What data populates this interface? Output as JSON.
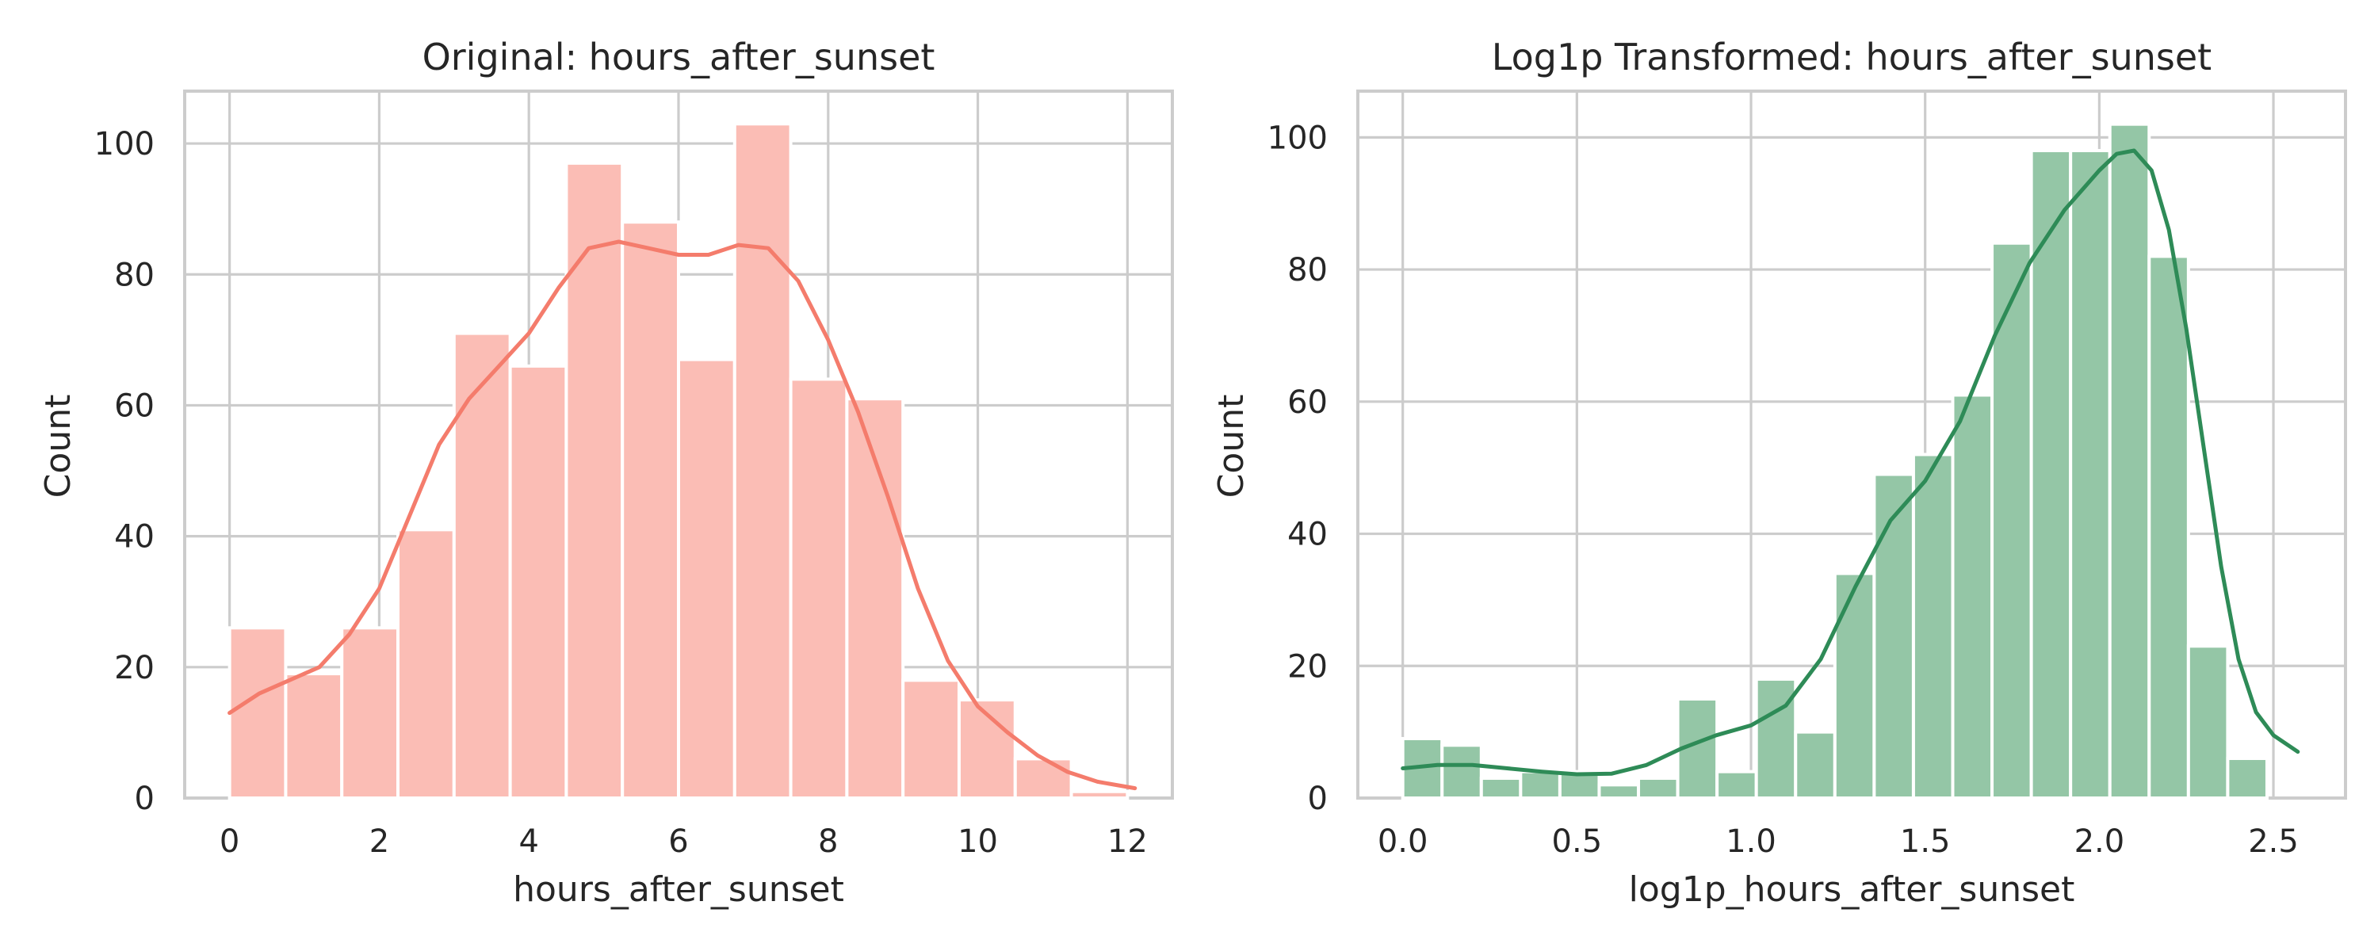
{
  "chart_data": [
    {
      "type": "bar",
      "title": "Original: hours_after_sunset",
      "xlabel": "hours_after_sunset",
      "ylabel": "Count",
      "xlim": [
        -0.6,
        12.6
      ],
      "ylim": [
        0,
        108
      ],
      "xticks": [
        0,
        2,
        4,
        6,
        8,
        10,
        12
      ],
      "xtick_labels": [
        "0",
        "2",
        "4",
        "6",
        "8",
        "10",
        "12"
      ],
      "yticks": [
        0,
        20,
        40,
        60,
        80,
        100
      ],
      "ytick_labels": [
        "0",
        "20",
        "40",
        "60",
        "80",
        "100"
      ],
      "grid": true,
      "bins": [
        {
          "x0": 0.0,
          "x1": 0.75,
          "count": 26
        },
        {
          "x0": 0.75,
          "x1": 1.5,
          "count": 19
        },
        {
          "x0": 1.5,
          "x1": 2.25,
          "count": 26
        },
        {
          "x0": 2.25,
          "x1": 3.0,
          "count": 41
        },
        {
          "x0": 3.0,
          "x1": 3.75,
          "count": 71
        },
        {
          "x0": 3.75,
          "x1": 4.5,
          "count": 66
        },
        {
          "x0": 4.5,
          "x1": 5.25,
          "count": 97
        },
        {
          "x0": 5.25,
          "x1": 6.0,
          "count": 88
        },
        {
          "x0": 6.0,
          "x1": 6.75,
          "count": 67
        },
        {
          "x0": 6.75,
          "x1": 7.5,
          "count": 103
        },
        {
          "x0": 7.5,
          "x1": 8.25,
          "count": 64
        },
        {
          "x0": 8.25,
          "x1": 9.0,
          "count": 61
        },
        {
          "x0": 9.0,
          "x1": 9.75,
          "count": 18
        },
        {
          "x0": 9.75,
          "x1": 10.5,
          "count": 15
        },
        {
          "x0": 10.5,
          "x1": 11.25,
          "count": 6
        },
        {
          "x0": 11.25,
          "x1": 12.0,
          "count": 1
        }
      ],
      "kde_curve": [
        [
          0.0,
          13
        ],
        [
          0.4,
          16
        ],
        [
          0.8,
          18
        ],
        [
          1.2,
          20
        ],
        [
          1.6,
          25
        ],
        [
          2.0,
          32
        ],
        [
          2.4,
          43
        ],
        [
          2.8,
          54
        ],
        [
          3.2,
          61
        ],
        [
          3.6,
          66
        ],
        [
          4.0,
          71
        ],
        [
          4.4,
          78
        ],
        [
          4.8,
          84
        ],
        [
          5.2,
          85
        ],
        [
          5.6,
          84
        ],
        [
          6.0,
          83
        ],
        [
          6.4,
          83
        ],
        [
          6.8,
          84.5
        ],
        [
          7.2,
          84
        ],
        [
          7.6,
          79
        ],
        [
          8.0,
          70
        ],
        [
          8.4,
          59
        ],
        [
          8.8,
          46
        ],
        [
          9.2,
          32
        ],
        [
          9.6,
          21
        ],
        [
          10.0,
          14
        ],
        [
          10.4,
          10
        ],
        [
          10.8,
          6.5
        ],
        [
          11.2,
          4
        ],
        [
          11.6,
          2.5
        ],
        [
          12.1,
          1.5
        ]
      ],
      "colors": {
        "bar": "#fbbdb5",
        "kde": "#f47c6c"
      }
    },
    {
      "type": "bar",
      "title": "Log1p Transformed: hours_after_sunset",
      "xlabel": "log1p_hours_after_sunset",
      "ylabel": "Count",
      "xlim": [
        -0.129,
        2.707
      ],
      "ylim": [
        0,
        107
      ],
      "xticks": [
        0.0,
        0.5,
        1.0,
        1.5,
        2.0,
        2.5
      ],
      "xtick_labels": [
        "0.0",
        "0.5",
        "1.0",
        "1.5",
        "2.0",
        "2.5"
      ],
      "yticks": [
        0,
        20,
        40,
        60,
        80,
        100
      ],
      "ytick_labels": [
        "0",
        "20",
        "40",
        "60",
        "80",
        "100"
      ],
      "grid": true,
      "bins": [
        {
          "x0": 0.0,
          "x1": 0.1128,
          "count": 9
        },
        {
          "x0": 0.1128,
          "x1": 0.2256,
          "count": 8
        },
        {
          "x0": 0.2256,
          "x1": 0.3384,
          "count": 3
        },
        {
          "x0": 0.3384,
          "x1": 0.4512,
          "count": 4
        },
        {
          "x0": 0.4512,
          "x1": 0.564,
          "count": 4
        },
        {
          "x0": 0.564,
          "x1": 0.6768,
          "count": 2
        },
        {
          "x0": 0.6768,
          "x1": 0.7896,
          "count": 3
        },
        {
          "x0": 0.7896,
          "x1": 0.9024,
          "count": 15
        },
        {
          "x0": 0.9024,
          "x1": 1.0152,
          "count": 4
        },
        {
          "x0": 1.0152,
          "x1": 1.128,
          "count": 18
        },
        {
          "x0": 1.128,
          "x1": 1.2408,
          "count": 10
        },
        {
          "x0": 1.2408,
          "x1": 1.3536,
          "count": 34
        },
        {
          "x0": 1.3536,
          "x1": 1.4664,
          "count": 49
        },
        {
          "x0": 1.4664,
          "x1": 1.5792,
          "count": 52
        },
        {
          "x0": 1.5792,
          "x1": 1.692,
          "count": 61
        },
        {
          "x0": 1.692,
          "x1": 1.8048,
          "count": 84
        },
        {
          "x0": 1.8048,
          "x1": 1.9176,
          "count": 98
        },
        {
          "x0": 1.9176,
          "x1": 2.0304,
          "count": 98
        },
        {
          "x0": 2.0304,
          "x1": 2.1432,
          "count": 102
        },
        {
          "x0": 2.1432,
          "x1": 2.256,
          "count": 82
        },
        {
          "x0": 2.256,
          "x1": 2.3688,
          "count": 23
        },
        {
          "x0": 2.3688,
          "x1": 2.4816,
          "count": 6
        }
      ],
      "kde_curve": [
        [
          0.0,
          4.5
        ],
        [
          0.1,
          5
        ],
        [
          0.2,
          5
        ],
        [
          0.3,
          4.5
        ],
        [
          0.4,
          4
        ],
        [
          0.5,
          3.6
        ],
        [
          0.6,
          3.7
        ],
        [
          0.7,
          5
        ],
        [
          0.8,
          7.5
        ],
        [
          0.9,
          9.5
        ],
        [
          1.0,
          11
        ],
        [
          1.1,
          14
        ],
        [
          1.2,
          21
        ],
        [
          1.3,
          32
        ],
        [
          1.4,
          42
        ],
        [
          1.5,
          48
        ],
        [
          1.6,
          57
        ],
        [
          1.7,
          70
        ],
        [
          1.8,
          81
        ],
        [
          1.9,
          89
        ],
        [
          2.0,
          95
        ],
        [
          2.05,
          97.5
        ],
        [
          2.1,
          98
        ],
        [
          2.15,
          95
        ],
        [
          2.2,
          86
        ],
        [
          2.25,
          71
        ],
        [
          2.3,
          53
        ],
        [
          2.35,
          35
        ],
        [
          2.4,
          21
        ],
        [
          2.45,
          13
        ],
        [
          2.5,
          9.5
        ],
        [
          2.57,
          7
        ]
      ],
      "colors": {
        "bar": "#94c6a6",
        "kde": "#2e8b57"
      }
    }
  ]
}
